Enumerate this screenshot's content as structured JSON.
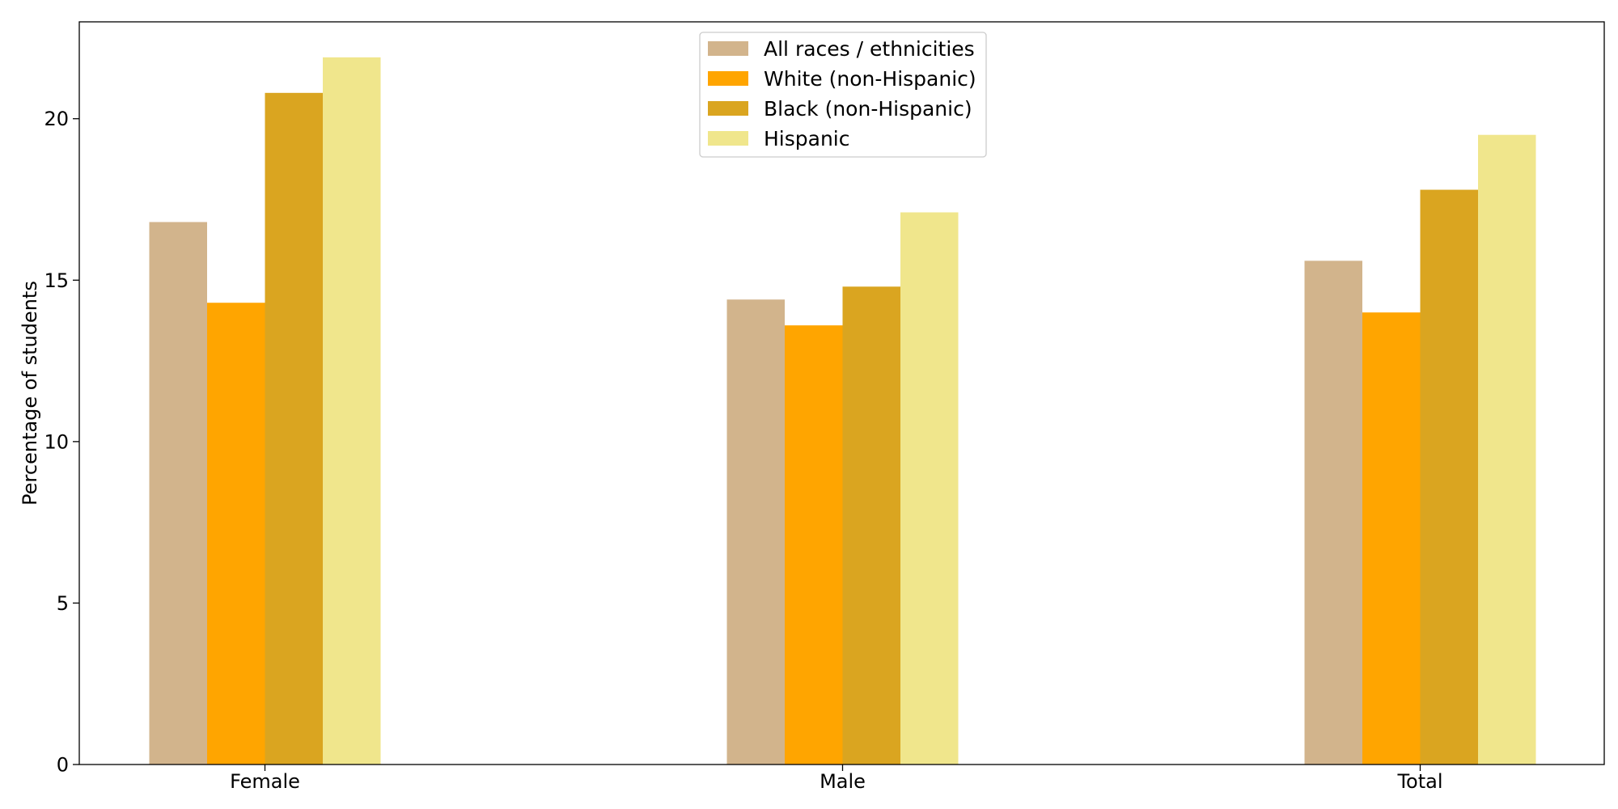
{
  "chart_data": {
    "type": "bar",
    "categories": [
      "Female",
      "Male",
      "Total"
    ],
    "series": [
      {
        "name": "All races / ethnicities",
        "color": "#D2B48C",
        "values": [
          16.8,
          14.4,
          15.6
        ]
      },
      {
        "name": "White (non-Hispanic)",
        "color": "#FFA500",
        "values": [
          14.3,
          13.6,
          14.0
        ]
      },
      {
        "name": "Black (non-Hispanic)",
        "color": "#DAA520",
        "values": [
          20.8,
          14.8,
          17.8
        ]
      },
      {
        "name": "Hispanic",
        "color": "#F0E68C",
        "values": [
          21.9,
          17.1,
          19.5
        ]
      }
    ],
    "title": "",
    "xlabel": "",
    "ylabel": "Percentage of students",
    "ylim": [
      0,
      23
    ],
    "yticks": [
      0,
      5,
      10,
      15,
      20
    ],
    "grid": false,
    "legend_position": "top-center"
  }
}
